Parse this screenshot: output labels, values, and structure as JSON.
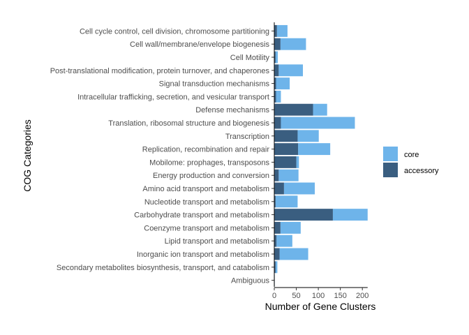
{
  "chart_data": {
    "type": "bar",
    "orientation": "horizontal",
    "stacked": true,
    "xlabel": "Number of Gene Clusters",
    "ylabel": "COG Categories",
    "xlim": [
      0,
      212
    ],
    "xticks": [
      0,
      50,
      100,
      150,
      200
    ],
    "grid": false,
    "legend_position": "right",
    "categories": [
      "Cell cycle control, cell division, chromosome partitioning",
      "Cell wall/membrane/envelope biogenesis",
      "Cell Motility",
      "Post-translational modification, protein turnover, and chaperones",
      "Signal transduction mechanisms",
      "Intracellular trafficking, secretion, and vesicular transport",
      "Defense mechanisms",
      "Translation, ribosomal structure and biogenesis",
      "Transcription",
      "Replication, recombination and repair",
      "Mobilome: prophages, transposons",
      "Energy production and conversion",
      "Amino acid transport and metabolism",
      "Nucleotide transport and metabolism",
      "Carbohydrate transport and metabolism",
      "Coenzyme transport and metabolism",
      "Lipid transport and metabolism",
      "Inorganic ion transport and metabolism",
      "Secondary metabolites biosynthesis, transport, and catabolism",
      "Ambiguous"
    ],
    "series": [
      {
        "name": "core",
        "color": "#6eb4ea",
        "values": [
          24,
          58,
          5,
          55,
          31,
          11,
          32,
          168,
          48,
          73,
          6,
          45,
          70,
          50,
          79,
          46,
          36,
          65,
          4,
          0
        ]
      },
      {
        "name": "accessory",
        "color": "#3a5e80",
        "values": [
          6,
          14,
          3,
          10,
          4,
          4,
          88,
          15,
          53,
          54,
          50,
          10,
          22,
          3,
          133,
          14,
          5,
          12,
          3,
          1
        ]
      }
    ],
    "legend": [
      "core",
      "accessory"
    ]
  }
}
